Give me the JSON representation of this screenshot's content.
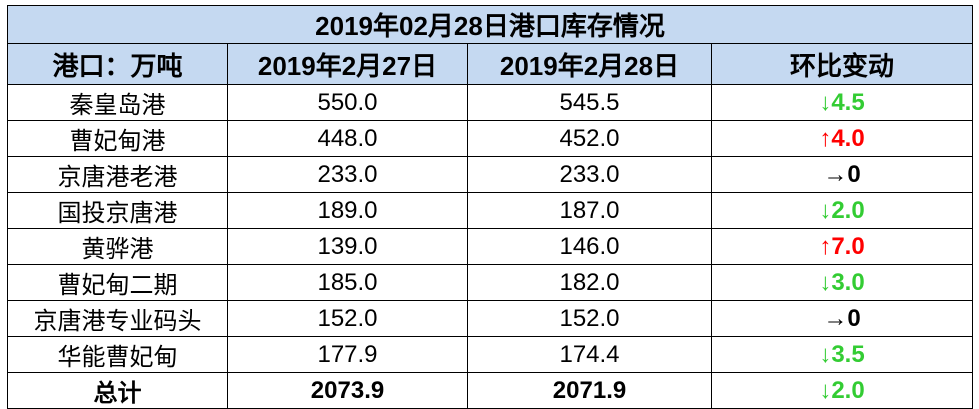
{
  "table": {
    "title": "2019年02月28日港口库存情况",
    "header": [
      "港口：万吨",
      "2019年2月27日",
      "2019年2月28日",
      "环比变动"
    ],
    "rows": [
      {
        "cells": [
          "秦皇岛港",
          "550.0",
          "545.5",
          "↓4.5"
        ],
        "change_color": "#33cc33"
      },
      {
        "cells": [
          "曹妃甸港",
          "448.0",
          "452.0",
          "↑4.0"
        ],
        "change_color": "#ff0000"
      },
      {
        "cells": [
          "京唐港老港",
          "233.0",
          "233.0",
          "→0"
        ],
        "change_color": "#000000"
      },
      {
        "cells": [
          "国投京唐港",
          "189.0",
          "187.0",
          "↓2.0"
        ],
        "change_color": "#33cc33"
      },
      {
        "cells": [
          "黄骅港",
          "139.0",
          "146.0",
          "↑7.0"
        ],
        "change_color": "#ff0000"
      },
      {
        "cells": [
          "曹妃甸二期",
          "185.0",
          "182.0",
          "↓3.0"
        ],
        "change_color": "#33cc33"
      },
      {
        "cells": [
          "京唐港专业码头",
          "152.0",
          "152.0",
          "→0"
        ],
        "change_color": "#000000"
      },
      {
        "cells": [
          "华能曹妃甸",
          "177.9",
          "174.4",
          "↓3.5"
        ],
        "change_color": "#33cc33"
      },
      {
        "cells": [
          "总计",
          "2073.9",
          "2071.9",
          "↓2.0"
        ],
        "change_color": "#33cc33"
      }
    ]
  }
}
